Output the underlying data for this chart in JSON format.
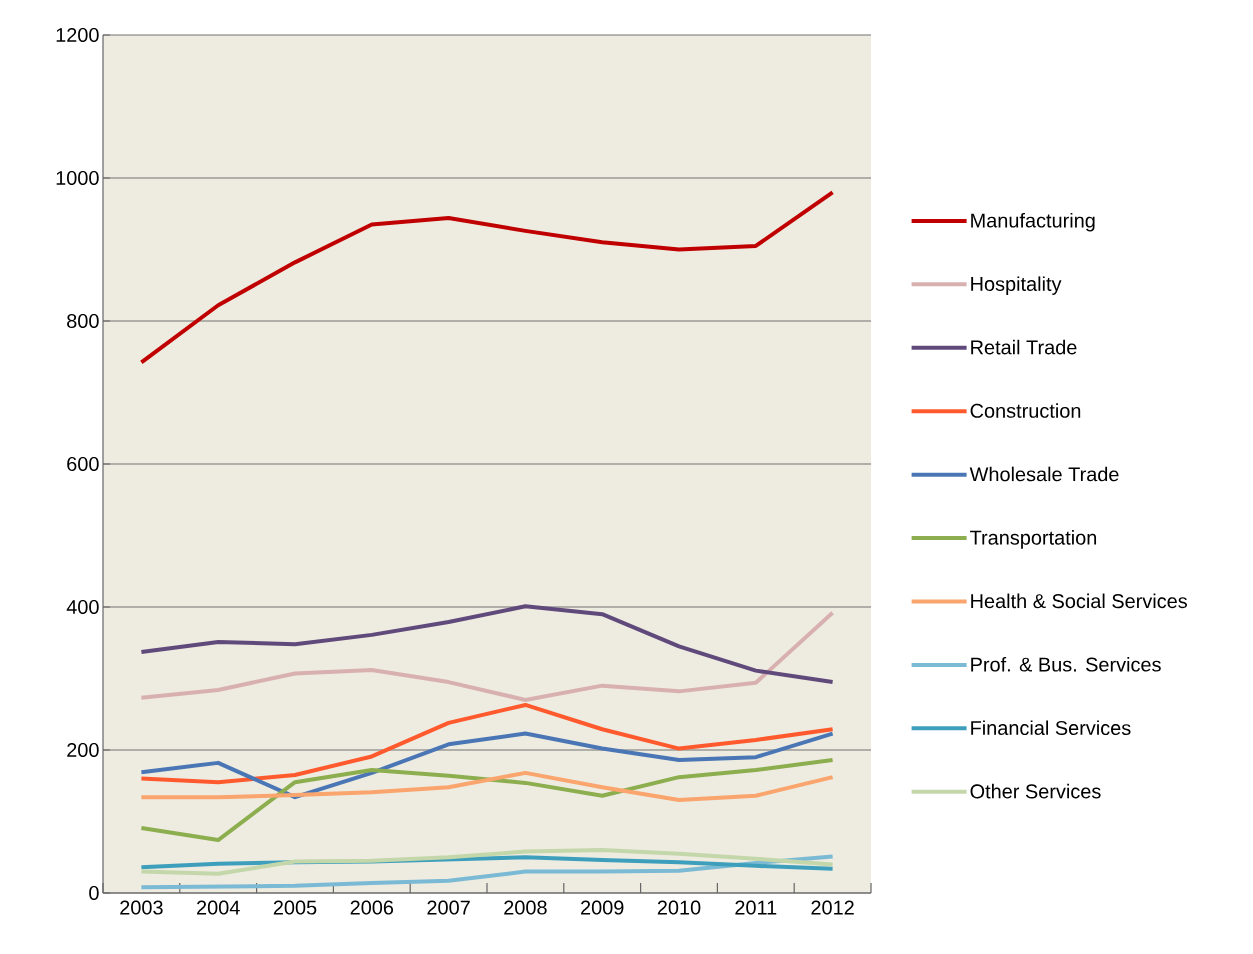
{
  "chart_data": {
    "type": "line",
    "categories": [
      "2003",
      "2004",
      "2005",
      "2006",
      "2007",
      "2008",
      "2009",
      "2010",
      "2011",
      "2012"
    ],
    "series": [
      {
        "name": "Manufacturing",
        "color": "#c00000",
        "values": [
          742,
          822,
          882,
          935,
          944,
          926,
          910,
          900,
          905,
          980
        ]
      },
      {
        "name": "Hospitality",
        "color": "#d9b0b0",
        "values": [
          273,
          284,
          307,
          312,
          295,
          270,
          290,
          282,
          294,
          392
        ]
      },
      {
        "name": "Retail Trade",
        "color": "#604a7b",
        "values": [
          337,
          351,
          348,
          361,
          379,
          401,
          390,
          345,
          311,
          295
        ]
      },
      {
        "name": "Construction",
        "color": "#ff5a2e",
        "values": [
          160,
          155,
          165,
          191,
          238,
          263,
          229,
          202,
          214,
          229
        ]
      },
      {
        "name": "Wholesale Trade",
        "color": "#4a76b5",
        "values": [
          169,
          182,
          134,
          168,
          208,
          223,
          202,
          186,
          190,
          223
        ]
      },
      {
        "name": "Transportation",
        "color": "#8cae4e",
        "values": [
          91,
          74,
          155,
          172,
          164,
          154,
          136,
          162,
          172,
          186
        ]
      },
      {
        "name": "Health & Social Services",
        "color": "#f9a56d",
        "values": [
          134,
          134,
          137,
          141,
          148,
          168,
          148,
          130,
          136,
          162
        ]
      },
      {
        "name": "Prof. & Bus. Services",
        "color": "#7bbad4",
        "values": [
          8,
          9,
          10,
          14,
          17,
          30,
          30,
          31,
          42,
          51
        ]
      },
      {
        "name": "Financial Services",
        "color": "#3d9fbc",
        "values": [
          36,
          41,
          43,
          44,
          47,
          50,
          46,
          43,
          38,
          34
        ]
      },
      {
        "name": "Other Services",
        "color": "#c4d7aa",
        "values": [
          30,
          27,
          44,
          45,
          50,
          58,
          60,
          55,
          48,
          40
        ]
      }
    ],
    "ylim": [
      0,
      1200
    ],
    "yticks": [
      0,
      200,
      400,
      600,
      800,
      1000,
      1200
    ],
    "grid": "y",
    "legend": "right",
    "marker": "none",
    "line_style": "solid"
  }
}
